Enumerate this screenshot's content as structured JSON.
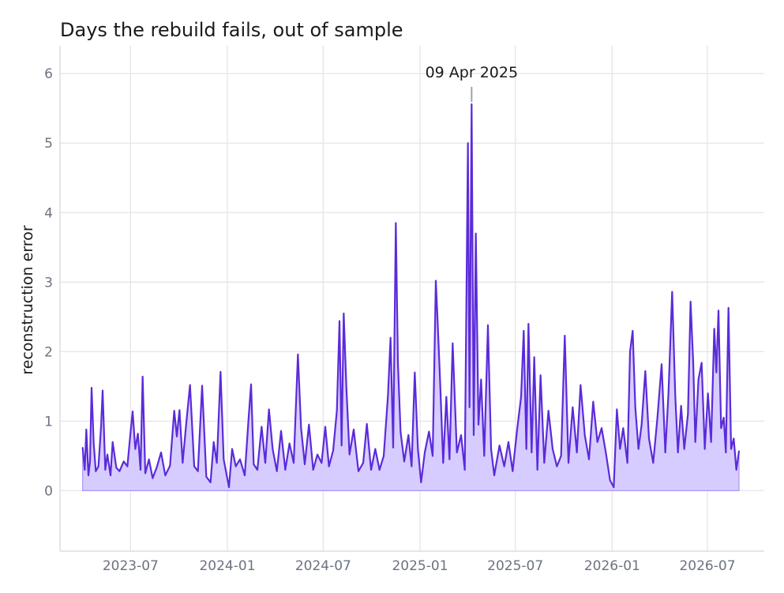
{
  "chart_data": {
    "type": "area",
    "title": "Days the rebuild fails, out of sample",
    "xlabel": "",
    "ylabel": "reconstruction error",
    "x_range": [
      "2023-02-17",
      "2026-10-17"
    ],
    "ylim": [
      -0.87,
      6.4
    ],
    "y_ticks": [
      0,
      1,
      2,
      3,
      4,
      5,
      6
    ],
    "x_ticks": [
      "2023-07",
      "2024-01",
      "2024-07",
      "2025-01",
      "2025-07",
      "2026-01",
      "2026-07"
    ],
    "grid": true,
    "colors": {
      "line": "#5b2bd9",
      "fill": "#d7ccff",
      "fill_edge": "#a996f5",
      "grid": "#e5e5ea",
      "annot_line": "#9ca3af"
    },
    "series": [
      {
        "points": [
          [
            "2023-04-01",
            0.62
          ],
          [
            "2023-04-05",
            0.3
          ],
          [
            "2023-04-08",
            0.88
          ],
          [
            "2023-04-12",
            0.22
          ],
          [
            "2023-04-15",
            0.42
          ],
          [
            "2023-04-18",
            1.48
          ],
          [
            "2023-04-22",
            0.68
          ],
          [
            "2023-04-26",
            0.28
          ],
          [
            "2023-05-01",
            0.35
          ],
          [
            "2023-05-06",
            0.92
          ],
          [
            "2023-05-09",
            1.44
          ],
          [
            "2023-05-14",
            0.3
          ],
          [
            "2023-05-18",
            0.52
          ],
          [
            "2023-05-24",
            0.22
          ],
          [
            "2023-05-28",
            0.7
          ],
          [
            "2023-06-04",
            0.33
          ],
          [
            "2023-06-10",
            0.28
          ],
          [
            "2023-06-18",
            0.42
          ],
          [
            "2023-06-25",
            0.35
          ],
          [
            "2023-07-01",
            0.84
          ],
          [
            "2023-07-05",
            1.14
          ],
          [
            "2023-07-10",
            0.6
          ],
          [
            "2023-07-15",
            0.82
          ],
          [
            "2023-07-20",
            0.3
          ],
          [
            "2023-07-24",
            1.64
          ],
          [
            "2023-07-29",
            0.25
          ],
          [
            "2023-08-05",
            0.45
          ],
          [
            "2023-08-12",
            0.18
          ],
          [
            "2023-08-20",
            0.34
          ],
          [
            "2023-08-28",
            0.55
          ],
          [
            "2023-09-05",
            0.22
          ],
          [
            "2023-09-14",
            0.36
          ],
          [
            "2023-09-22",
            1.15
          ],
          [
            "2023-09-27",
            0.78
          ],
          [
            "2023-10-02",
            1.16
          ],
          [
            "2023-10-08",
            0.4
          ],
          [
            "2023-10-15",
            0.98
          ],
          [
            "2023-10-22",
            1.52
          ],
          [
            "2023-10-30",
            0.35
          ],
          [
            "2023-11-06",
            0.28
          ],
          [
            "2023-11-14",
            1.51
          ],
          [
            "2023-11-22",
            0.2
          ],
          [
            "2023-11-30",
            0.12
          ],
          [
            "2023-12-06",
            0.7
          ],
          [
            "2023-12-12",
            0.4
          ],
          [
            "2023-12-19",
            1.71
          ],
          [
            "2023-12-25",
            0.45
          ],
          [
            "2024-01-04",
            0.05
          ],
          [
            "2024-01-10",
            0.6
          ],
          [
            "2024-01-17",
            0.35
          ],
          [
            "2024-01-25",
            0.45
          ],
          [
            "2024-02-03",
            0.22
          ],
          [
            "2024-02-10",
            1.01
          ],
          [
            "2024-02-15",
            1.53
          ],
          [
            "2024-02-20",
            0.38
          ],
          [
            "2024-02-27",
            0.3
          ],
          [
            "2024-03-06",
            0.92
          ],
          [
            "2024-03-13",
            0.4
          ],
          [
            "2024-03-20",
            1.17
          ],
          [
            "2024-03-27",
            0.6
          ],
          [
            "2024-04-04",
            0.28
          ],
          [
            "2024-04-12",
            0.86
          ],
          [
            "2024-04-20",
            0.3
          ],
          [
            "2024-04-28",
            0.68
          ],
          [
            "2024-05-06",
            0.4
          ],
          [
            "2024-05-14",
            1.96
          ],
          [
            "2024-05-20",
            0.9
          ],
          [
            "2024-05-27",
            0.38
          ],
          [
            "2024-06-04",
            0.95
          ],
          [
            "2024-06-12",
            0.3
          ],
          [
            "2024-06-20",
            0.52
          ],
          [
            "2024-06-28",
            0.4
          ],
          [
            "2024-07-05",
            0.92
          ],
          [
            "2024-07-12",
            0.35
          ],
          [
            "2024-07-20",
            0.58
          ],
          [
            "2024-07-27",
            1.15
          ],
          [
            "2024-08-01",
            2.44
          ],
          [
            "2024-08-05",
            0.65
          ],
          [
            "2024-08-09",
            2.55
          ],
          [
            "2024-08-14",
            1.5
          ],
          [
            "2024-08-20",
            0.52
          ],
          [
            "2024-08-28",
            0.88
          ],
          [
            "2024-09-06",
            0.28
          ],
          [
            "2024-09-15",
            0.4
          ],
          [
            "2024-09-22",
            0.96
          ],
          [
            "2024-09-30",
            0.3
          ],
          [
            "2024-10-08",
            0.6
          ],
          [
            "2024-10-16",
            0.3
          ],
          [
            "2024-10-24",
            0.5
          ],
          [
            "2024-11-01",
            1.36
          ],
          [
            "2024-11-06",
            2.2
          ],
          [
            "2024-11-11",
            0.62
          ],
          [
            "2024-11-16",
            3.85
          ],
          [
            "2024-11-20",
            1.84
          ],
          [
            "2024-11-25",
            0.85
          ],
          [
            "2024-12-02",
            0.42
          ],
          [
            "2024-12-10",
            0.8
          ],
          [
            "2024-12-16",
            0.35
          ],
          [
            "2024-12-22",
            1.7
          ],
          [
            "2024-12-28",
            0.6
          ],
          [
            "2025-01-03",
            0.12
          ],
          [
            "2025-01-10",
            0.55
          ],
          [
            "2025-01-18",
            0.85
          ],
          [
            "2025-01-25",
            0.5
          ],
          [
            "2025-01-31",
            3.02
          ],
          [
            "2025-02-03",
            2.51
          ],
          [
            "2025-02-08",
            1.6
          ],
          [
            "2025-02-14",
            0.4
          ],
          [
            "2025-02-20",
            1.35
          ],
          [
            "2025-02-26",
            0.45
          ],
          [
            "2025-03-04",
            2.12
          ],
          [
            "2025-03-12",
            0.55
          ],
          [
            "2025-03-20",
            0.8
          ],
          [
            "2025-03-27",
            0.3
          ],
          [
            "2025-04-02",
            5.0
          ],
          [
            "2025-04-05",
            1.2
          ],
          [
            "2025-04-09",
            5.56
          ],
          [
            "2025-04-13",
            0.8
          ],
          [
            "2025-04-17",
            3.7
          ],
          [
            "2025-04-22",
            0.95
          ],
          [
            "2025-04-27",
            1.6
          ],
          [
            "2025-05-03",
            0.5
          ],
          [
            "2025-05-10",
            2.38
          ],
          [
            "2025-05-16",
            0.6
          ],
          [
            "2025-05-22",
            0.22
          ],
          [
            "2025-06-01",
            0.65
          ],
          [
            "2025-06-10",
            0.35
          ],
          [
            "2025-06-18",
            0.7
          ],
          [
            "2025-06-26",
            0.28
          ],
          [
            "2025-07-04",
            0.85
          ],
          [
            "2025-07-12",
            1.35
          ],
          [
            "2025-07-17",
            2.3
          ],
          [
            "2025-07-22",
            0.6
          ],
          [
            "2025-07-26",
            2.4
          ],
          [
            "2025-08-01",
            0.55
          ],
          [
            "2025-08-06",
            1.92
          ],
          [
            "2025-08-12",
            0.3
          ],
          [
            "2025-08-18",
            1.66
          ],
          [
            "2025-08-25",
            0.4
          ],
          [
            "2025-09-02",
            1.15
          ],
          [
            "2025-09-10",
            0.6
          ],
          [
            "2025-09-18",
            0.35
          ],
          [
            "2025-09-26",
            0.5
          ],
          [
            "2025-10-03",
            2.23
          ],
          [
            "2025-10-10",
            0.4
          ],
          [
            "2025-10-18",
            1.2
          ],
          [
            "2025-10-26",
            0.55
          ],
          [
            "2025-11-02",
            1.52
          ],
          [
            "2025-11-10",
            0.8
          ],
          [
            "2025-11-18",
            0.45
          ],
          [
            "2025-11-26",
            1.28
          ],
          [
            "2025-12-04",
            0.7
          ],
          [
            "2025-12-12",
            0.9
          ],
          [
            "2025-12-20",
            0.55
          ],
          [
            "2025-12-28",
            0.15
          ],
          [
            "2026-01-04",
            0.05
          ],
          [
            "2026-01-10",
            1.17
          ],
          [
            "2026-01-16",
            0.6
          ],
          [
            "2026-01-22",
            0.9
          ],
          [
            "2026-01-30",
            0.4
          ],
          [
            "2026-02-04",
            2.0
          ],
          [
            "2026-02-09",
            2.3
          ],
          [
            "2026-02-14",
            1.2
          ],
          [
            "2026-02-20",
            0.6
          ],
          [
            "2026-02-26",
            0.95
          ],
          [
            "2026-03-05",
            1.72
          ],
          [
            "2026-03-12",
            0.75
          ],
          [
            "2026-03-20",
            0.4
          ],
          [
            "2026-03-28",
            1.05
          ],
          [
            "2026-04-05",
            1.82
          ],
          [
            "2026-04-12",
            0.55
          ],
          [
            "2026-04-18",
            1.4
          ],
          [
            "2026-04-25",
            2.86
          ],
          [
            "2026-05-01",
            1.35
          ],
          [
            "2026-05-06",
            0.55
          ],
          [
            "2026-05-12",
            1.22
          ],
          [
            "2026-05-18",
            0.6
          ],
          [
            "2026-05-25",
            1.1
          ],
          [
            "2026-05-30",
            2.72
          ],
          [
            "2026-06-04",
            1.85
          ],
          [
            "2026-06-08",
            0.7
          ],
          [
            "2026-06-14",
            1.6
          ],
          [
            "2026-06-20",
            1.84
          ],
          [
            "2026-06-26",
            0.6
          ],
          [
            "2026-07-02",
            1.4
          ],
          [
            "2026-07-08",
            0.7
          ],
          [
            "2026-07-14",
            2.33
          ],
          [
            "2026-07-18",
            1.7
          ],
          [
            "2026-07-22",
            2.59
          ],
          [
            "2026-07-27",
            0.9
          ],
          [
            "2026-08-01",
            1.05
          ],
          [
            "2026-08-05",
            0.55
          ],
          [
            "2026-08-10",
            2.63
          ],
          [
            "2026-08-15",
            0.6
          ],
          [
            "2026-08-20",
            0.75
          ],
          [
            "2026-08-25",
            0.3
          ],
          [
            "2026-08-30",
            0.57
          ]
        ]
      }
    ],
    "annotations": [
      {
        "x": "2025-04-09",
        "y": 5.56,
        "label": "09 Apr 2025"
      }
    ]
  }
}
